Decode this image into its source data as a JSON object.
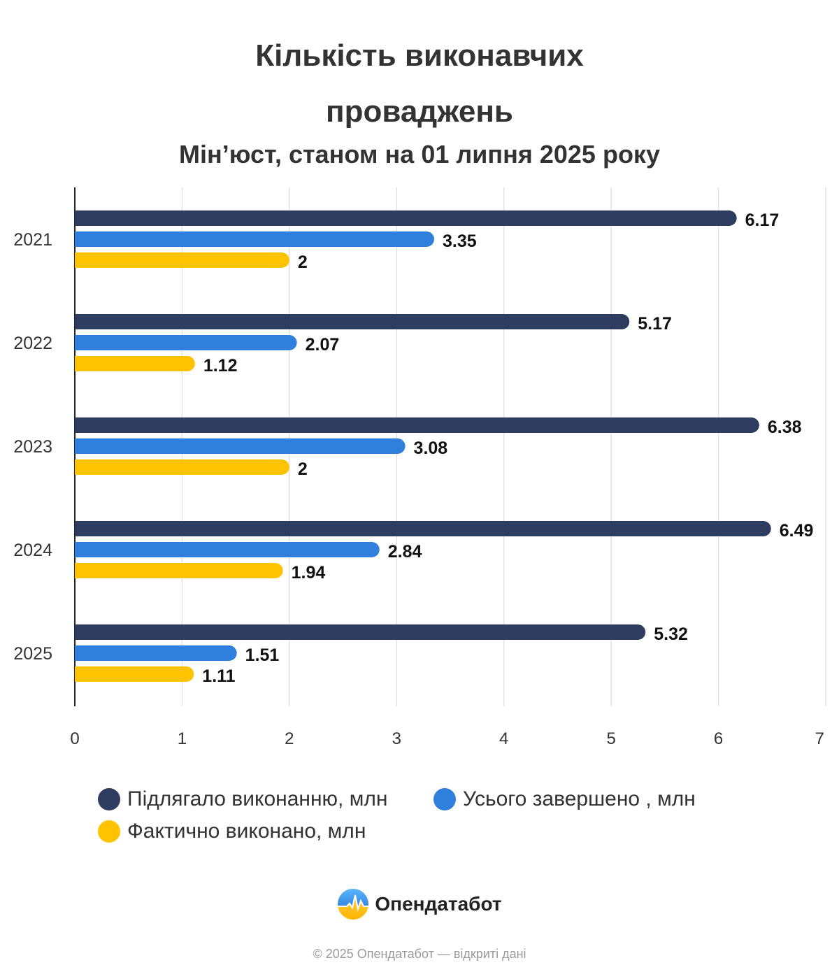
{
  "chart_data": {
    "type": "bar",
    "orientation": "horizontal",
    "title_line1": "Кількість виконавчих",
    "title_line2": "проваджень",
    "subtitle": "Мін’юст, станом на 01 липня 2025 року",
    "categories": [
      "2021",
      "2022",
      "2023",
      "2024",
      "2025"
    ],
    "series": [
      {
        "name": "Підлягало виконанню, млн",
        "color": "#2e3d5f",
        "values": [
          6.17,
          5.17,
          6.38,
          6.49,
          5.32
        ],
        "labels": [
          "6.17",
          "5.17",
          "6.38",
          "6.49",
          "5.32"
        ]
      },
      {
        "name": "Усього завершено , млн",
        "color": "#2f80dc",
        "values": [
          3.35,
          2.07,
          3.08,
          2.84,
          1.51
        ],
        "labels": [
          "3.35",
          "2.07",
          "3.08",
          "2.84",
          "1.51"
        ]
      },
      {
        "name": "Фактично виконано, млн",
        "color": "#ffc300",
        "values": [
          2,
          1.12,
          2,
          1.94,
          1.11
        ],
        "labels": [
          "2",
          "1.12",
          "2",
          "1.94",
          "1.11"
        ]
      }
    ],
    "xlim": [
      0,
      7
    ],
    "xticks": [
      "0",
      "1",
      "2",
      "3",
      "4",
      "5",
      "6",
      "7"
    ],
    "grid": true,
    "legend_position": "bottom"
  },
  "brand": {
    "name": "Опендатабот",
    "logo_icon": "opendatabot-logo-icon"
  },
  "footer": {
    "text": "© 2025 Опендатабот — відкриті дані"
  }
}
